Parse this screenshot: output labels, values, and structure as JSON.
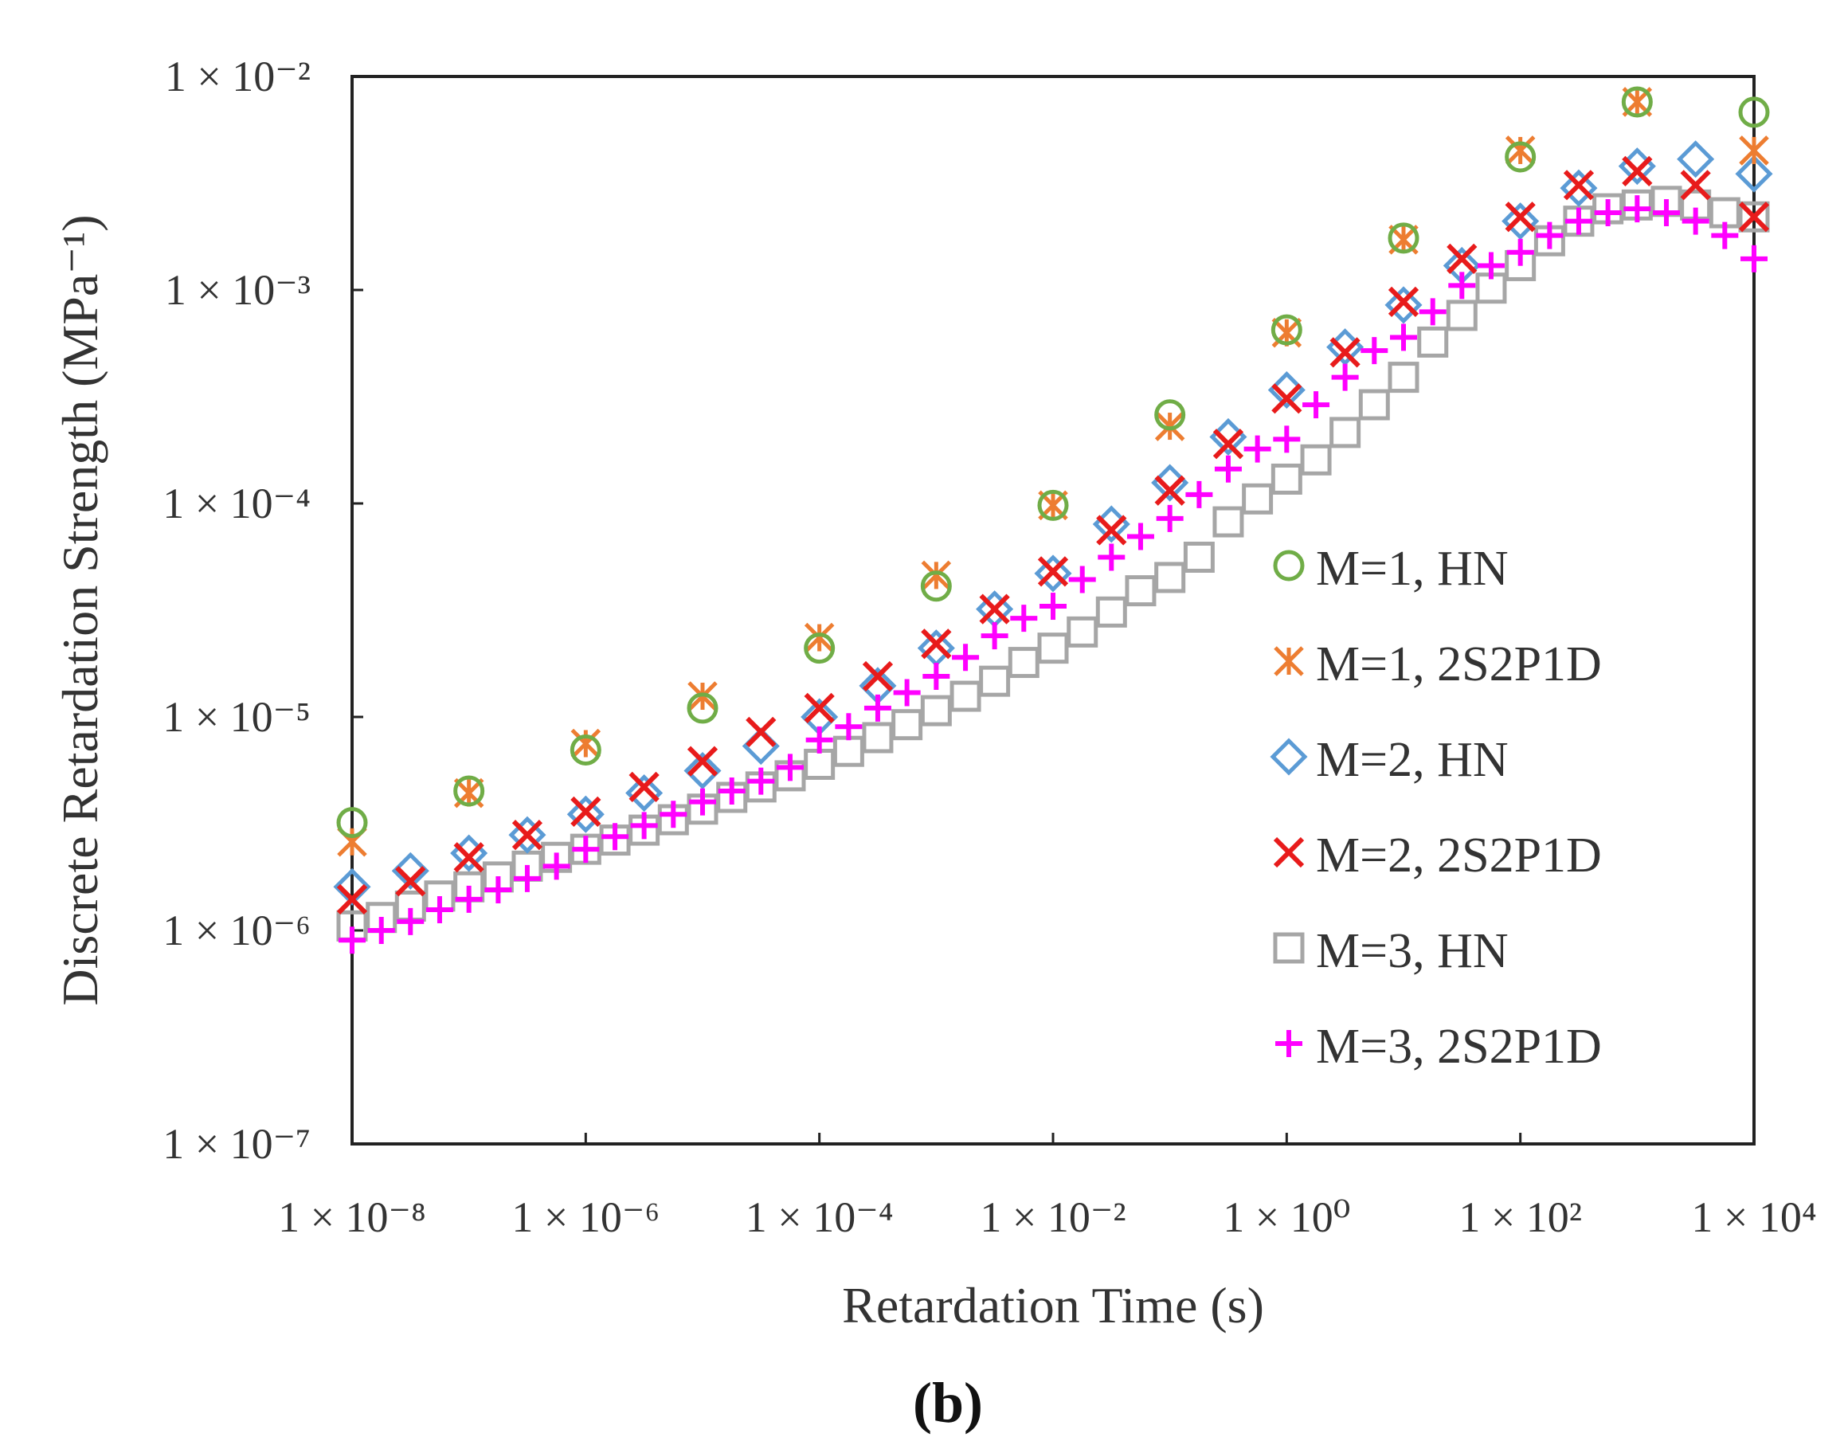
{
  "chart_data": {
    "type": "scatter",
    "panel_label": "(b)",
    "xlabel": "Retardation Time (s)",
    "ylabel": "Discrete Retardation Strength (MPa⁻¹)",
    "xscale": "log",
    "yscale": "log",
    "xlim": [
      1e-08,
      10000.0
    ],
    "ylim": [
      1e-07,
      0.01
    ],
    "x_ticks": [
      {
        "value": 1e-08,
        "label": "1 × 10⁻⁸"
      },
      {
        "value": 1e-06,
        "label": "1 × 10⁻⁶"
      },
      {
        "value": 0.0001,
        "label": "1 × 10⁻⁴"
      },
      {
        "value": 0.01,
        "label": "1 × 10⁻²"
      },
      {
        "value": 1,
        "label": "1 × 10⁰"
      },
      {
        "value": 100,
        "label": "1 × 10²"
      },
      {
        "value": 10000,
        "label": "1 × 10⁴"
      }
    ],
    "y_ticks": [
      {
        "value": 0.01,
        "label": "1 × 10⁻²"
      },
      {
        "value": 0.001,
        "label": "1 × 10⁻³"
      },
      {
        "value": 0.0001,
        "label": "1 × 10⁻⁴"
      },
      {
        "value": 1e-05,
        "label": "1 × 10⁻⁵"
      },
      {
        "value": 1e-06,
        "label": "1 × 10⁻⁶"
      },
      {
        "value": 1e-07,
        "label": "1 × 10⁻⁷"
      }
    ],
    "legend_position": "right-middle",
    "series": [
      {
        "name": "M=1, HN",
        "marker": "circle",
        "color": "#70ad47",
        "x": [
          1e-08,
          1e-07,
          1e-06,
          1e-05,
          0.0001,
          0.001,
          0.01,
          0.1,
          1,
          10,
          100,
          1000,
          10000
        ],
        "y": [
          3.2e-06,
          4.5e-06,
          7e-06,
          1.1e-05,
          2.1e-05,
          4.1e-05,
          9.8e-05,
          0.00026,
          0.00065,
          0.00175,
          0.0042,
          0.0076,
          0.0068
        ]
      },
      {
        "name": "M=1, 2S2P1D",
        "marker": "asterisk",
        "color": "#ed7d31",
        "x": [
          1e-08,
          1e-07,
          1e-06,
          1e-05,
          0.0001,
          0.001,
          0.01,
          0.1,
          1,
          10,
          100,
          1000,
          10000
        ],
        "y": [
          2.6e-06,
          4.4e-06,
          7.5e-06,
          1.25e-05,
          2.35e-05,
          4.6e-05,
          9.8e-05,
          0.00023,
          0.00063,
          0.00172,
          0.0045,
          0.0076,
          0.0045
        ]
      },
      {
        "name": "M=2, HN",
        "marker": "diamond",
        "color": "#5b9bd5",
        "x": [
          1e-08,
          3.16e-08,
          1e-07,
          3.16e-07,
          1e-06,
          3.16e-06,
          1e-05,
          3.16e-05,
          0.0001,
          0.000316,
          0.001,
          0.00316,
          0.01,
          0.0316,
          0.1,
          0.316,
          1,
          3.16,
          10,
          31.6,
          100,
          316,
          1000,
          3162,
          10000
        ],
        "y": [
          1.6e-06,
          1.9e-06,
          2.3e-06,
          2.8e-06,
          3.5e-06,
          4.4e-06,
          5.6e-06,
          7.3e-06,
          1e-05,
          1.4e-05,
          2.1e-05,
          3.2e-05,
          4.7e-05,
          8e-05,
          0.000125,
          0.000205,
          0.00034,
          0.00054,
          0.00085,
          0.0013,
          0.0021,
          0.003,
          0.0038,
          0.0041,
          0.0035
        ]
      },
      {
        "name": "M=2, 2S2P1D",
        "marker": "x",
        "color": "#e81b1b",
        "x": [
          1e-08,
          3.16e-08,
          1e-07,
          3.16e-07,
          1e-06,
          3.16e-06,
          1e-05,
          3.16e-05,
          0.0001,
          0.000316,
          0.001,
          0.00316,
          0.01,
          0.0316,
          0.1,
          0.316,
          1,
          3.16,
          10,
          31.6,
          100,
          316,
          1000,
          3162,
          10000
        ],
        "y": [
          1.4e-06,
          1.7e-06,
          2.2e-06,
          2.8e-06,
          3.6e-06,
          4.7e-06,
          6.2e-06,
          8.5e-06,
          1.1e-05,
          1.55e-05,
          2.2e-05,
          3.2e-05,
          4.8e-05,
          7.5e-05,
          0.000115,
          0.00019,
          0.00031,
          0.00051,
          0.00088,
          0.0014,
          0.0022,
          0.0031,
          0.0036,
          0.0031,
          0.0022
        ]
      },
      {
        "name": "M=3, HN",
        "marker": "square",
        "color": "#a6a6a6",
        "x": [
          1e-08,
          1.78e-08,
          3.16e-08,
          5.62e-08,
          1e-07,
          1.78e-07,
          3.16e-07,
          5.62e-07,
          1e-06,
          1.78e-06,
          3.16e-06,
          5.62e-06,
          1e-05,
          1.78e-05,
          3.16e-05,
          5.62e-05,
          0.0001,
          0.000178,
          0.000316,
          0.000562,
          0.001,
          0.00178,
          0.00316,
          0.00562,
          0.01,
          0.0178,
          0.0316,
          0.0562,
          0.1,
          0.178,
          0.316,
          0.562,
          1,
          1.78,
          3.16,
          5.62,
          10,
          17.8,
          31.6,
          56.2,
          100,
          178,
          316,
          562,
          1000,
          1778,
          3162,
          5623,
          10000
        ],
        "y": [
          1.05e-06,
          1.15e-06,
          1.3e-06,
          1.45e-06,
          1.6e-06,
          1.78e-06,
          2e-06,
          2.2e-06,
          2.4e-06,
          2.65e-06,
          2.95e-06,
          3.3e-06,
          3.7e-06,
          4.2e-06,
          4.7e-06,
          5.3e-06,
          6e-06,
          6.9e-06,
          8e-06,
          9.2e-06,
          1.07e-05,
          1.25e-05,
          1.47e-05,
          1.8e-05,
          2.1e-05,
          2.5e-05,
          3.1e-05,
          3.9e-05,
          4.5e-05,
          5.6e-05,
          8.2e-05,
          0.000105,
          0.00013,
          0.00016,
          0.000215,
          0.00029,
          0.00039,
          0.00057,
          0.00076,
          0.00102,
          0.0013,
          0.0017,
          0.0021,
          0.0024,
          0.0025,
          0.0026,
          0.0025,
          0.0023,
          0.0022
        ]
      },
      {
        "name": "M=3, 2S2P1D",
        "marker": "plus",
        "color": "#ff00ff",
        "x": [
          1e-08,
          1.78e-08,
          3.16e-08,
          5.62e-08,
          1e-07,
          1.78e-07,
          3.16e-07,
          5.62e-07,
          1e-06,
          1.78e-06,
          3.16e-06,
          5.62e-06,
          1e-05,
          1.78e-05,
          3.16e-05,
          5.62e-05,
          0.0001,
          0.000178,
          0.000316,
          0.000562,
          0.001,
          0.00178,
          0.00316,
          0.00562,
          0.01,
          0.0178,
          0.0316,
          0.0562,
          0.1,
          0.178,
          0.316,
          0.562,
          1,
          1.78,
          3.16,
          5.62,
          10,
          17.8,
          31.6,
          56.2,
          100,
          178,
          316,
          562,
          1000,
          1778,
          3162,
          5623,
          10000
        ],
        "y": [
          9e-07,
          1e-06,
          1.1e-06,
          1.25e-06,
          1.4e-06,
          1.55e-06,
          1.75e-06,
          2e-06,
          2.4e-06,
          2.75e-06,
          3.1e-06,
          3.5e-06,
          4e-06,
          4.5e-06,
          5e-06,
          5.8e-06,
          7.8e-06,
          9e-06,
          1.1e-05,
          1.3e-05,
          1.55e-05,
          1.9e-05,
          2.4e-05,
          2.9e-05,
          3.3e-05,
          4.4e-05,
          5.6e-05,
          7e-05,
          8.5e-05,
          0.00011,
          0.000145,
          0.00018,
          0.0002,
          0.00029,
          0.00039,
          0.00052,
          0.0006,
          0.00079,
          0.00105,
          0.0013,
          0.0015,
          0.0018,
          0.0021,
          0.0023,
          0.0024,
          0.0023,
          0.0021,
          0.0018,
          0.0014
        ]
      }
    ]
  }
}
